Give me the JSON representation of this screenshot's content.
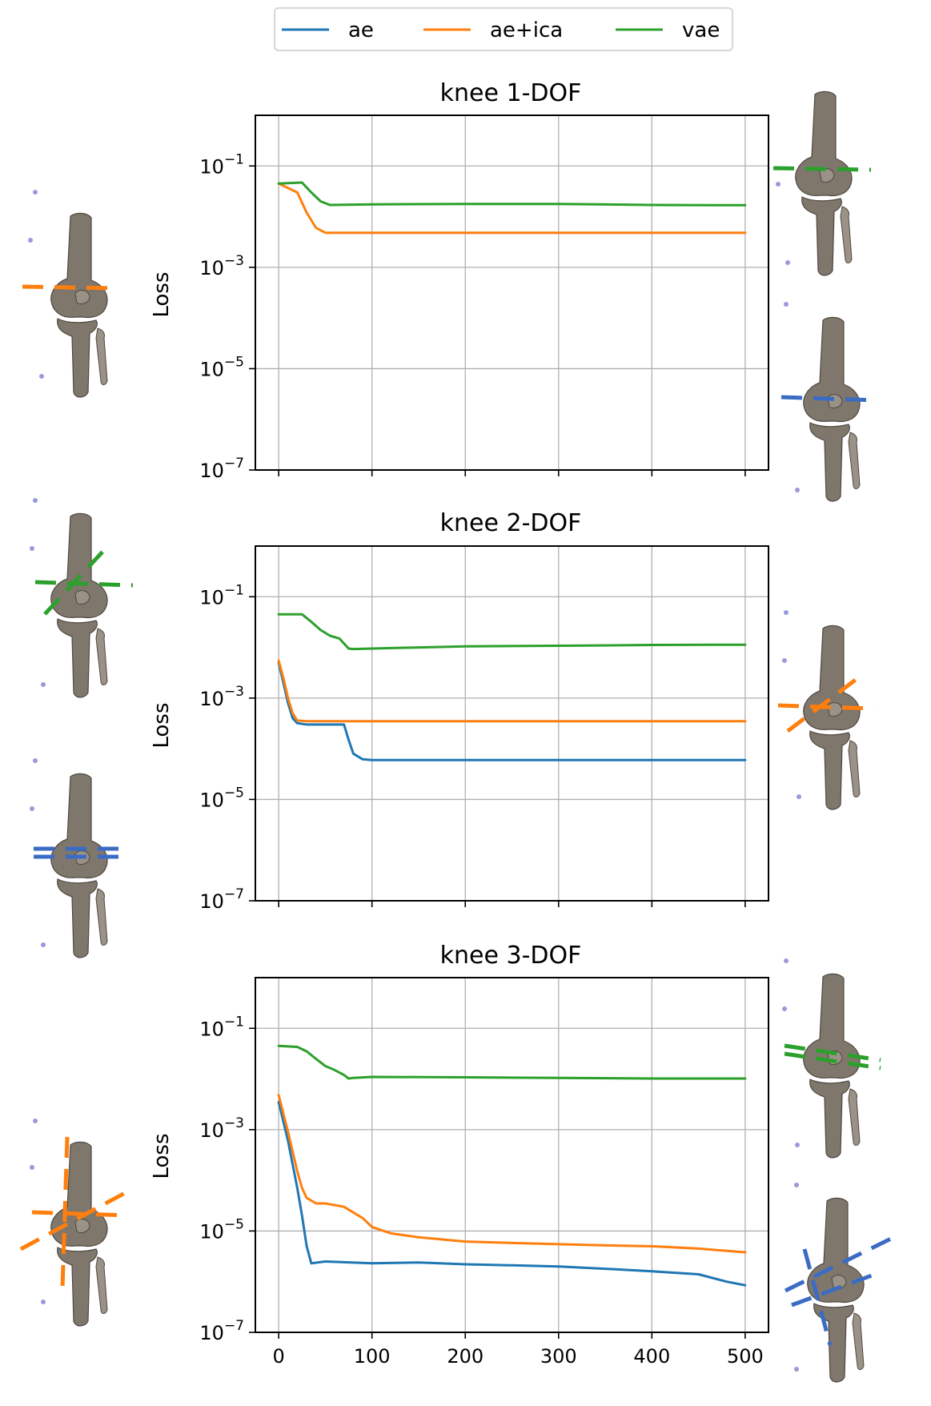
{
  "legend": {
    "entries": [
      {
        "label": "ae",
        "color": "#1f77b4"
      },
      {
        "label": "ae+ica",
        "color": "#ff7f0e"
      },
      {
        "label": "vae",
        "color": "#2ca02c"
      }
    ]
  },
  "chart_data": [
    {
      "type": "line",
      "title": "knee 1-DOF",
      "xlabel": "",
      "ylabel": "Loss",
      "yscale": "log",
      "xlim": [
        -25,
        525
      ],
      "ylim": [
        1e-07,
        1
      ],
      "xticks": [
        0,
        100,
        200,
        300,
        400,
        500
      ],
      "show_xtick_labels": false,
      "yticks": [
        {
          "value": 0.1,
          "base": "10",
          "exp": "−1"
        },
        {
          "value": 0.001,
          "base": "10",
          "exp": "−3"
        },
        {
          "value": 1e-05,
          "base": "10",
          "exp": "−5"
        },
        {
          "value": 1e-07,
          "base": "10",
          "exp": "−7"
        }
      ],
      "grid": true,
      "series": [
        {
          "name": "ae+ica",
          "color": "#ff7f0e",
          "x": [
            0,
            20,
            30,
            40,
            50,
            100,
            200,
            300,
            400,
            500
          ],
          "y": [
            0.045,
            0.03,
            0.012,
            0.006,
            0.0048,
            0.0048,
            0.0048,
            0.0048,
            0.0048,
            0.0048
          ]
        },
        {
          "name": "vae",
          "color": "#2ca02c",
          "x": [
            0,
            25,
            35,
            45,
            55,
            100,
            200,
            300,
            400,
            500
          ],
          "y": [
            0.045,
            0.047,
            0.03,
            0.02,
            0.017,
            0.0175,
            0.0178,
            0.0178,
            0.017,
            0.0168
          ]
        }
      ]
    },
    {
      "type": "line",
      "title": "knee 2-DOF",
      "xlabel": "",
      "ylabel": "Loss",
      "yscale": "log",
      "xlim": [
        -25,
        525
      ],
      "ylim": [
        1e-07,
        1
      ],
      "xticks": [
        0,
        100,
        200,
        300,
        400,
        500
      ],
      "show_xtick_labels": false,
      "yticks": [
        {
          "value": 0.1,
          "base": "10",
          "exp": "−1"
        },
        {
          "value": 0.001,
          "base": "10",
          "exp": "−3"
        },
        {
          "value": 1e-05,
          "base": "10",
          "exp": "−5"
        },
        {
          "value": 1e-07,
          "base": "10",
          "exp": "−7"
        }
      ],
      "grid": true,
      "series": [
        {
          "name": "ae",
          "color": "#1f77b4",
          "x": [
            0,
            5,
            10,
            15,
            20,
            30,
            50,
            70,
            75,
            80,
            90,
            100,
            200,
            300,
            400,
            500
          ],
          "y": [
            0.005,
            0.002,
            0.0008,
            0.0004,
            0.00032,
            0.0003,
            0.0003,
            0.0003,
            0.00015,
            8e-05,
            6.2e-05,
            6e-05,
            6e-05,
            6e-05,
            6e-05,
            6e-05
          ]
        },
        {
          "name": "ae+ica",
          "color": "#ff7f0e",
          "x": [
            0,
            5,
            10,
            15,
            20,
            30,
            50,
            100,
            200,
            300,
            400,
            500
          ],
          "y": [
            0.0055,
            0.0025,
            0.001,
            0.0005,
            0.00036,
            0.00035,
            0.00035,
            0.00035,
            0.00035,
            0.00035,
            0.00035,
            0.00035
          ]
        },
        {
          "name": "vae",
          "color": "#2ca02c",
          "x": [
            0,
            25,
            35,
            45,
            55,
            65,
            75,
            80,
            100,
            200,
            300,
            400,
            500
          ],
          "y": [
            0.045,
            0.045,
            0.032,
            0.022,
            0.017,
            0.015,
            0.0095,
            0.0093,
            0.0095,
            0.0105,
            0.0108,
            0.0112,
            0.0113
          ]
        }
      ]
    },
    {
      "type": "line",
      "title": "knee 3-DOF",
      "xlabel": "",
      "ylabel": "Loss",
      "yscale": "log",
      "xlim": [
        -25,
        525
      ],
      "ylim": [
        1e-07,
        1
      ],
      "xticks": [
        0,
        100,
        200,
        300,
        400,
        500
      ],
      "show_xtick_labels": true,
      "yticks": [
        {
          "value": 0.1,
          "base": "10",
          "exp": "−1"
        },
        {
          "value": 0.001,
          "base": "10",
          "exp": "−3"
        },
        {
          "value": 1e-05,
          "base": "10",
          "exp": "−5"
        },
        {
          "value": 1e-07,
          "base": "10",
          "exp": "−7"
        }
      ],
      "grid": true,
      "series": [
        {
          "name": "ae",
          "color": "#1f77b4",
          "x": [
            0,
            10,
            20,
            25,
            30,
            35,
            50,
            100,
            150,
            200,
            250,
            300,
            350,
            400,
            450,
            480,
            500
          ],
          "y": [
            0.0035,
            0.0006,
            7e-05,
            2e-05,
            5e-06,
            2.3e-06,
            2.5e-06,
            2.3e-06,
            2.4e-06,
            2.2e-06,
            2.1e-06,
            2e-06,
            1.8e-06,
            1.6e-06,
            1.4e-06,
            1e-06,
            8.5e-07
          ]
        },
        {
          "name": "ae+ica",
          "color": "#ff7f0e",
          "x": [
            0,
            10,
            20,
            25,
            30,
            40,
            50,
            70,
            90,
            100,
            120,
            150,
            200,
            250,
            300,
            350,
            400,
            450,
            500
          ],
          "y": [
            0.0048,
            0.0009,
            0.00015,
            7e-05,
            4.5e-05,
            3.5e-05,
            3.5e-05,
            3e-05,
            1.8e-05,
            1.2e-05,
            9e-06,
            7.5e-06,
            6.2e-06,
            5.8e-06,
            5.5e-06,
            5.2e-06,
            5e-06,
            4.5e-06,
            3.8e-06
          ]
        },
        {
          "name": "vae",
          "color": "#2ca02c",
          "x": [
            0,
            20,
            30,
            40,
            50,
            60,
            70,
            75,
            80,
            100,
            200,
            300,
            400,
            500
          ],
          "y": [
            0.045,
            0.043,
            0.035,
            0.025,
            0.018,
            0.015,
            0.012,
            0.0102,
            0.0105,
            0.011,
            0.0108,
            0.0105,
            0.0102,
            0.0102
          ]
        }
      ]
    }
  ]
}
